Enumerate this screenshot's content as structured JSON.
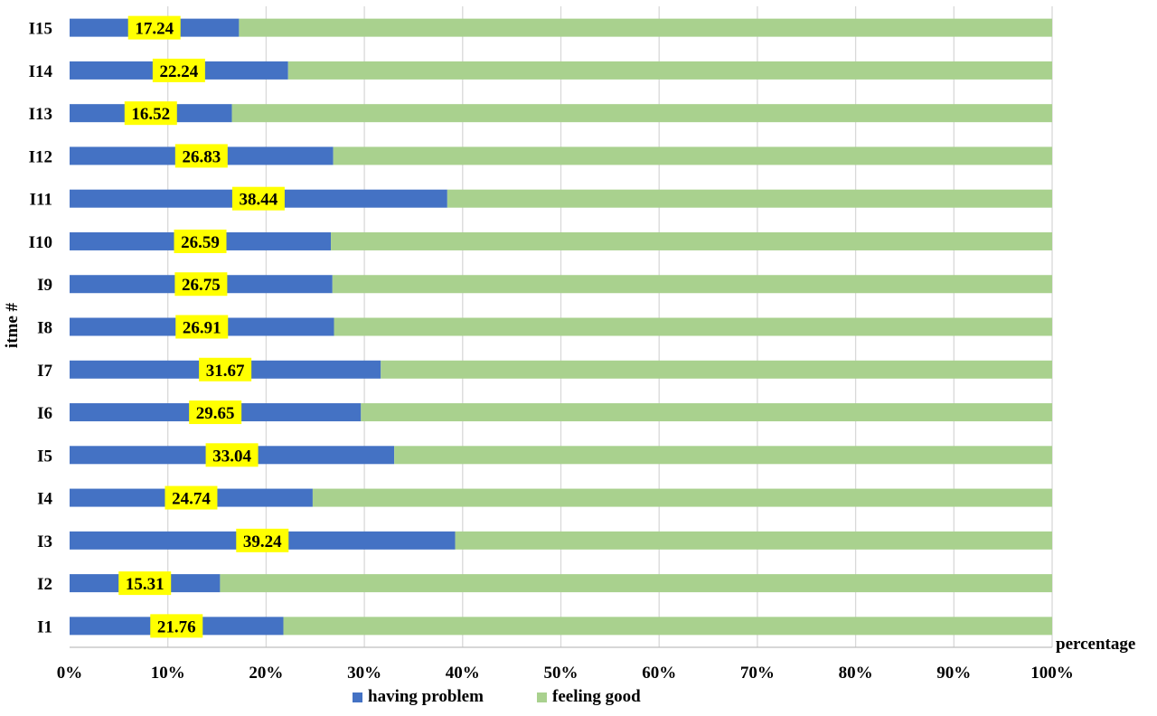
{
  "chart_data": {
    "type": "bar",
    "orientation": "horizontal",
    "stacked": "percent",
    "categories": [
      "I1",
      "I2",
      "I3",
      "I4",
      "I5",
      "I6",
      "I7",
      "I8",
      "I9",
      "I10",
      "I11",
      "I12",
      "I13",
      "I14",
      "I15"
    ],
    "series": [
      {
        "name": "having problem",
        "color": "#4472C4",
        "values": [
          21.76,
          15.31,
          39.24,
          24.74,
          33.04,
          29.65,
          31.67,
          26.91,
          26.75,
          26.59,
          38.44,
          26.83,
          16.52,
          22.24,
          17.24
        ]
      },
      {
        "name": "feeling good",
        "color": "#A9D18E",
        "values": [
          78.24,
          84.69,
          60.76,
          75.26,
          66.96,
          70.35,
          68.33,
          73.09,
          73.25,
          73.41,
          61.56,
          73.17,
          83.48,
          77.76,
          82.76
        ]
      }
    ],
    "data_labels": [
      "21.76",
      "15.31",
      "39.24",
      "24.74",
      "33.04",
      "29.65",
      "31.67",
      "26.91",
      "26.75",
      "26.59",
      "38.44",
      "26.83",
      "16.52",
      "22.24",
      "17.24"
    ],
    "label_color": "#FFFF00",
    "x_ticks": [
      "0%",
      "10%",
      "20%",
      "30%",
      "40%",
      "50%",
      "60%",
      "70%",
      "80%",
      "90%",
      "100%"
    ],
    "xlim": [
      0,
      100
    ],
    "xlabel": "percentage",
    "ylabel": "itme #",
    "grid": true,
    "legend": "bottom"
  }
}
